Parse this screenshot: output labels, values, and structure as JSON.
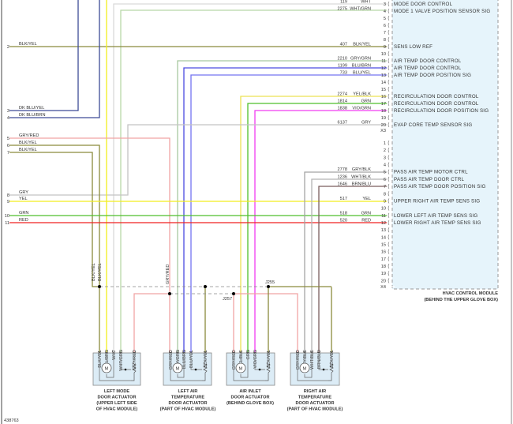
{
  "diagram_id": "438763",
  "module": {
    "name": "HVAC CONTROL MODULE",
    "location": "(BEHIND THE UPPER GLOVE BOX)",
    "connector_x3": "X3",
    "connector_x4": "X4",
    "x3_pins": [
      {
        "pin": "3",
        "circuit": "119",
        "color": "WHT",
        "func": "MODE DOOR CONTROL"
      },
      {
        "pin": "4",
        "circuit": "2275",
        "color": "WHT/GRN",
        "func": "MODE 1 VALVE POSITION SENSOR SIG"
      },
      {
        "pin": "5"
      },
      {
        "pin": "6"
      },
      {
        "pin": "7"
      },
      {
        "pin": "8"
      },
      {
        "pin": "9",
        "circuit": "407",
        "color": "BLK/YEL",
        "func": "SENS LOW REF"
      },
      {
        "pin": "10"
      },
      {
        "pin": "11",
        "circuit": "2210",
        "color": "GRY/GRN",
        "func": "AIR TEMP DOOR CONTROL"
      },
      {
        "pin": "12",
        "circuit": "1199",
        "color": "BLU/BRN",
        "func": "AIR TEMP DOOR CONTROL"
      },
      {
        "pin": "13",
        "circuit": "733",
        "color": "BLU/YEL",
        "func": "AIR TEMP DOOR POSITION SIG"
      },
      {
        "pin": "14"
      },
      {
        "pin": "15"
      },
      {
        "pin": "16",
        "circuit": "2274",
        "color": "YEL/BLK",
        "func": "RECIRCULATION DOOR CONTROL"
      },
      {
        "pin": "17",
        "circuit": "1814",
        "color": "GRN",
        "func": "RECIRCULATION DOOR CONTROL"
      },
      {
        "pin": "18",
        "circuit": "1838",
        "color": "VIO/GRN",
        "func": "RECIRCULATION DOOR POSITION SIG"
      },
      {
        "pin": "19"
      },
      {
        "pin": "20",
        "circuit": "6137",
        "color": "GRY",
        "func": "EVAP CORE TEMP SENSOR SIG"
      }
    ],
    "x4_pins": [
      {
        "pin": "1"
      },
      {
        "pin": "2"
      },
      {
        "pin": "3"
      },
      {
        "pin": "4"
      },
      {
        "pin": "5",
        "circuit": "2778",
        "color": "GRY/BLK",
        "func": "PASS AIR TEMP MOTOR CTRL"
      },
      {
        "pin": "6",
        "circuit": "1236",
        "color": "WHT/BLK",
        "func": "PASS AIR TEMP DOOR CTRL"
      },
      {
        "pin": "7",
        "circuit": "1646",
        "color": "BRN/BLU",
        "func": "PASS AIR TEMP DOOR POSITION SIG"
      },
      {
        "pin": "8"
      },
      {
        "pin": "9",
        "circuit": "517",
        "color": "YEL",
        "func": "UPPER RIGHT AIR TEMP SENS SIG"
      },
      {
        "pin": "10"
      },
      {
        "pin": "11",
        "circuit": "518",
        "color": "GRN",
        "func": "LOWER LEFT AIR TEMP SENS SIG"
      },
      {
        "pin": "12",
        "circuit": "520",
        "color": "RED",
        "func": "LOWER RIGHT AIR TEMP SENS SIG"
      },
      {
        "pin": "13"
      },
      {
        "pin": "14"
      },
      {
        "pin": "15"
      },
      {
        "pin": "16"
      },
      {
        "pin": "17"
      },
      {
        "pin": "18"
      },
      {
        "pin": "19"
      },
      {
        "pin": "20"
      }
    ]
  },
  "left_connector": [
    {
      "pin": "2",
      "color": "BLK/YEL"
    },
    {
      "pin": "3",
      "color": "DK BLU/YEL"
    },
    {
      "pin": "4",
      "color": "DK BLU/BRN"
    },
    {
      "pin": "5",
      "color": "GRY/RED"
    },
    {
      "pin": "6",
      "color": "BLK/YEL"
    },
    {
      "pin": "7",
      "color": "BLK/YEL"
    },
    {
      "pin": "8",
      "color": "GRY"
    },
    {
      "pin": "9",
      "color": "YEL"
    },
    {
      "pin": "10",
      "color": "GRN"
    },
    {
      "pin": "11",
      "color": "RED"
    }
  ],
  "splice_labels": {
    "upper_left_a": "BLK/YEL",
    "upper_left_b": "BLK/YEL",
    "upper_gry_red": "GRY/RED"
  },
  "splices": [
    "J255",
    "J257"
  ],
  "actuators": [
    {
      "name_lines": [
        "LEFT MODE",
        "DOOR ACTUATOR",
        "(UPPER LEFT SIDE",
        "OF HVAC MODULE)"
      ],
      "wires": [
        "BLK/YEL",
        "YEL/BRN",
        "WHT",
        "WHT/GRN",
        "GRY/RED"
      ]
    },
    {
      "name_lines": [
        "LEFT AIR",
        "TEMPERATURE",
        "DOOR ACTUATOR",
        "(PART OF HVAC MODULE)"
      ],
      "wires": [
        "GRY/RED",
        "GRY/GRN",
        "BLU/BRN",
        "BLU/YEL",
        "BLK/YEL"
      ]
    },
    {
      "name_lines": [
        "AIR INLET",
        "DOOR ACTUATOR",
        "(BEHIND GLOVE BOX)"
      ],
      "wires": [
        "GRY/RED",
        "YEL/BLK",
        "GRN",
        "VIO/GRN",
        "BLK/YEL"
      ]
    },
    {
      "name_lines": [
        "RIGHT AIR",
        "TEMPERATURE",
        "DOOR ACTUATOR",
        "(PART OF HVAC MODULE)"
      ],
      "wires": [
        "GRY/RED",
        "GRY/BLK",
        "WHT/BLK",
        "BRN/BLU",
        "BLK/YEL"
      ]
    }
  ],
  "motor_symbol": "M",
  "wire_colors": {
    "BLK/YEL": "#8a8a3c",
    "DK BLU": "#3d4b96",
    "BLU/BRN": "#4a4ae0",
    "BLU/YEL": "#7474f0",
    "YEL": "#f2ee1e",
    "GRN": "#4fbf2c",
    "RED": "#f02222",
    "GRY/RED": "#f0a4a4",
    "GRY": "#c4c4c4",
    "WHT": "#dadada",
    "WHT/GRN": "#b8d8a8",
    "GRY/GRN": "#a8c8a0",
    "VIO/GRN": "#f03cf0",
    "YEL/BLK": "#ece254",
    "BRN/BLU": "#7a5e5e",
    "GRY/BLK": "#a4a4a4",
    "WHT/BLK": "#b4b4b4",
    "module_fill": "#e6f4fb"
  }
}
